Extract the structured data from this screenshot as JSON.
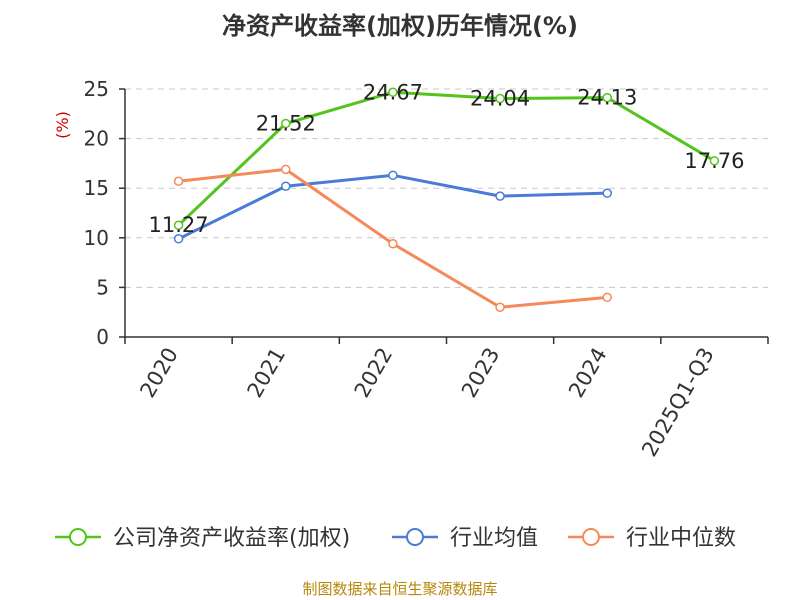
{
  "chart_data": {
    "type": "line",
    "title": "净资产收益率(加权)历年情况(%)",
    "ylabel": "(%)",
    "xlabel": "",
    "categories": [
      "2020",
      "2021",
      "2022",
      "2023",
      "2024",
      "2025Q1-Q3"
    ],
    "ylim": [
      0,
      25
    ],
    "yticks": [
      0,
      5,
      10,
      15,
      20,
      25
    ],
    "grid": true,
    "legend_position": "bottom",
    "series": [
      {
        "name": "公司净资产收益率(加权)",
        "color": "#52c41a",
        "values": [
          11.27,
          21.52,
          24.67,
          24.04,
          24.13,
          17.76
        ],
        "labels": [
          "11.27",
          "21.52",
          "24.67",
          "24.04",
          "24.13",
          "17.76"
        ]
      },
      {
        "name": "行业均值",
        "color": "#4a7bd6",
        "values": [
          9.9,
          15.2,
          16.3,
          14.2,
          14.5,
          null
        ]
      },
      {
        "name": "行业中位数",
        "color": "#f5895a",
        "values": [
          15.7,
          16.9,
          9.4,
          3.0,
          4.0,
          null
        ]
      }
    ]
  },
  "footer": {
    "source": "制图数据来自恒生聚源数据库"
  }
}
